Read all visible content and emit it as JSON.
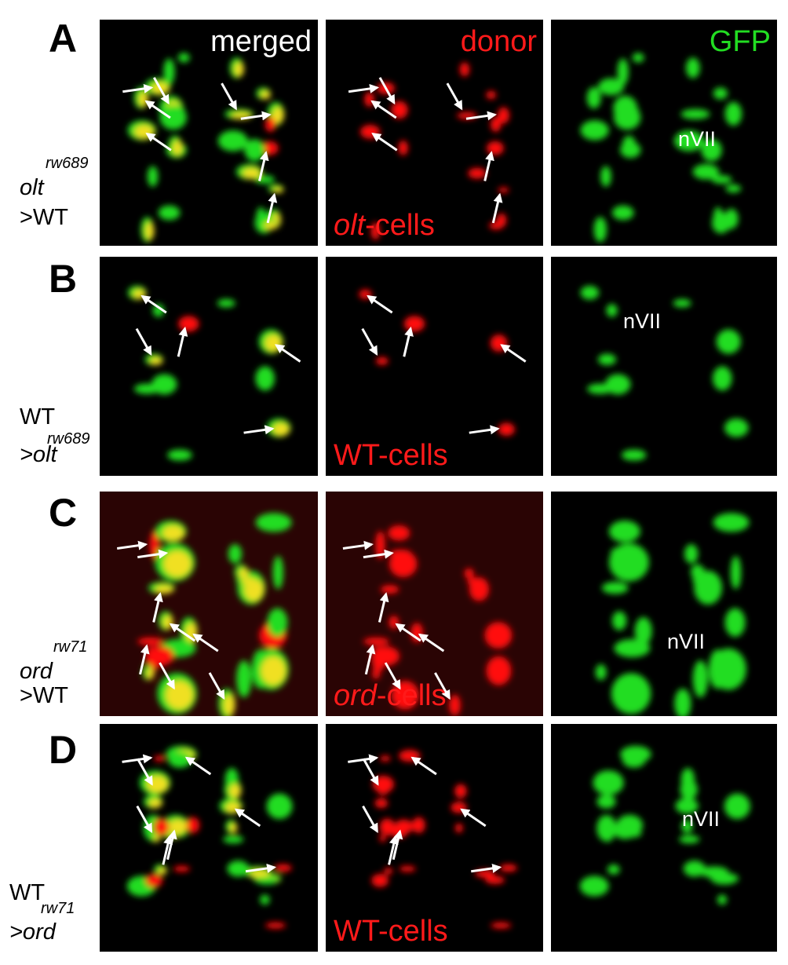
{
  "rows": [
    {
      "letter": "A",
      "genotype": {
        "name": "olt",
        "allele": "rw689",
        "host": ">WT"
      },
      "images": [
        {
          "label": "merged"
        },
        {
          "label": "donor"
        },
        {
          "label": "GFP"
        }
      ],
      "cell_label": {
        "name": "olt",
        "suffix": "-cells"
      },
      "nucleus": "nVII"
    },
    {
      "letter": "B",
      "genotype": {
        "name": "WT",
        "allele": "rw689",
        "host": ">olt"
      },
      "cell_label": {
        "name": "WT",
        "suffix": "-cells"
      },
      "nucleus": "nVII"
    },
    {
      "letter": "C",
      "genotype": {
        "name": "ord",
        "allele": "rw71",
        "host": ">WT"
      },
      "cell_label": {
        "name": "ord",
        "suffix": "-cells"
      },
      "nucleus": "nVII"
    },
    {
      "letter": "D",
      "genotype": {
        "name": "WT",
        "allele": "rw71",
        "host": ">ord"
      },
      "cell_label": {
        "name": "WT",
        "suffix": "-cells"
      },
      "nucleus": "nVII"
    }
  ]
}
